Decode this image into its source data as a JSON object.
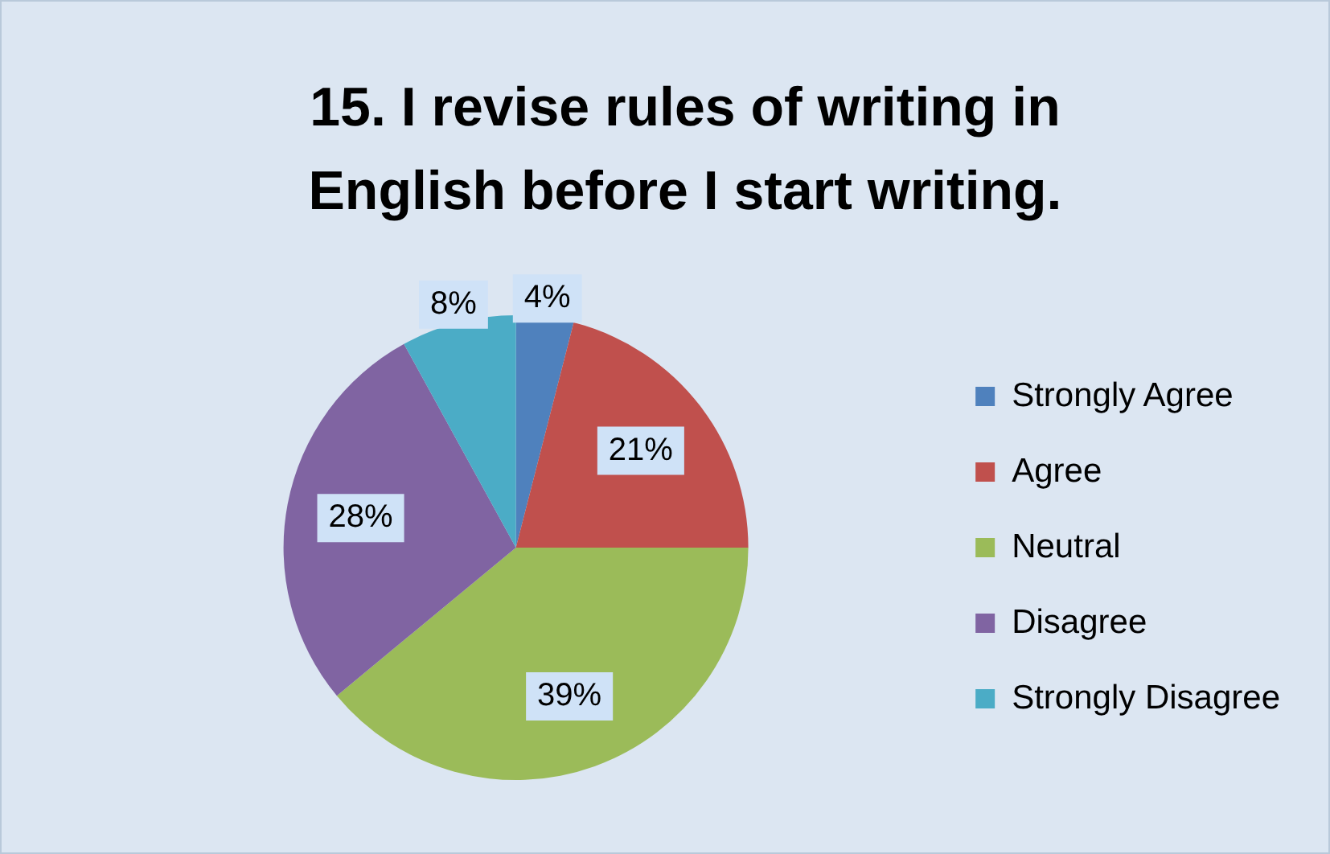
{
  "chart_data": {
    "type": "pie",
    "title": "15. I revise rules of writing in English before I start writing.",
    "categories": [
      "Strongly Agree",
      "Agree",
      "Neutral",
      "Disagree",
      "Strongly Disagree"
    ],
    "values": [
      4,
      21,
      39,
      28,
      8
    ],
    "colors": [
      "#4f81bd",
      "#c0504d",
      "#9bbb59",
      "#8064a2",
      "#4bacc6"
    ],
    "value_labels": [
      "4%",
      "21%",
      "39%",
      "28%",
      "8%"
    ],
    "legend": "right"
  }
}
